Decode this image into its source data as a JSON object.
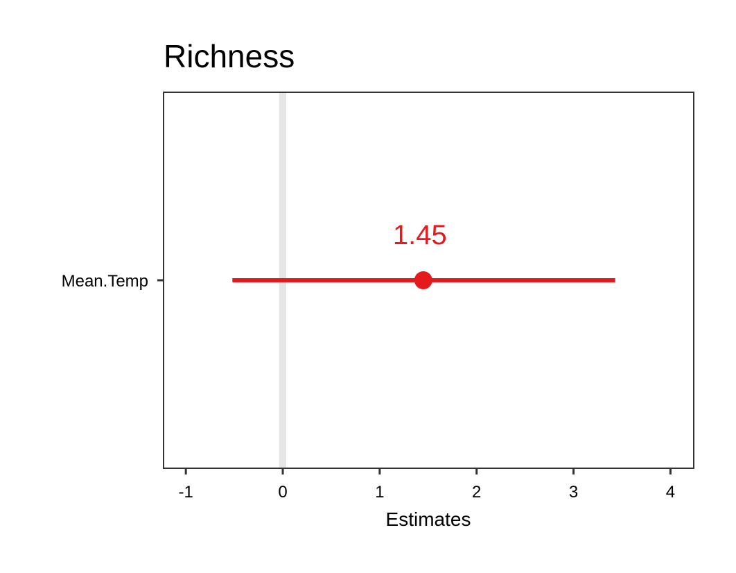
{
  "chart_data": {
    "type": "scatter",
    "title": "Richness",
    "xlabel": "Estimates",
    "ylabel": "",
    "xlim": [
      -1.23,
      4.24
    ],
    "xticks": [
      -1,
      0,
      1,
      2,
      3,
      4
    ],
    "reference_line_x": 0,
    "grid": false,
    "legend": "none",
    "categories": [
      "Mean.Temp"
    ],
    "series": [
      {
        "points": [
          {
            "term": "Mean.Temp",
            "estimate": 1.45,
            "ci_low": -0.52,
            "ci_high": 3.43,
            "label": "1.45"
          }
        ]
      }
    ]
  },
  "colors": {
    "estimate": "#e41a1c",
    "reference_line": "#e6e6e6",
    "panel_border": "#333333",
    "axis": "#333333"
  }
}
